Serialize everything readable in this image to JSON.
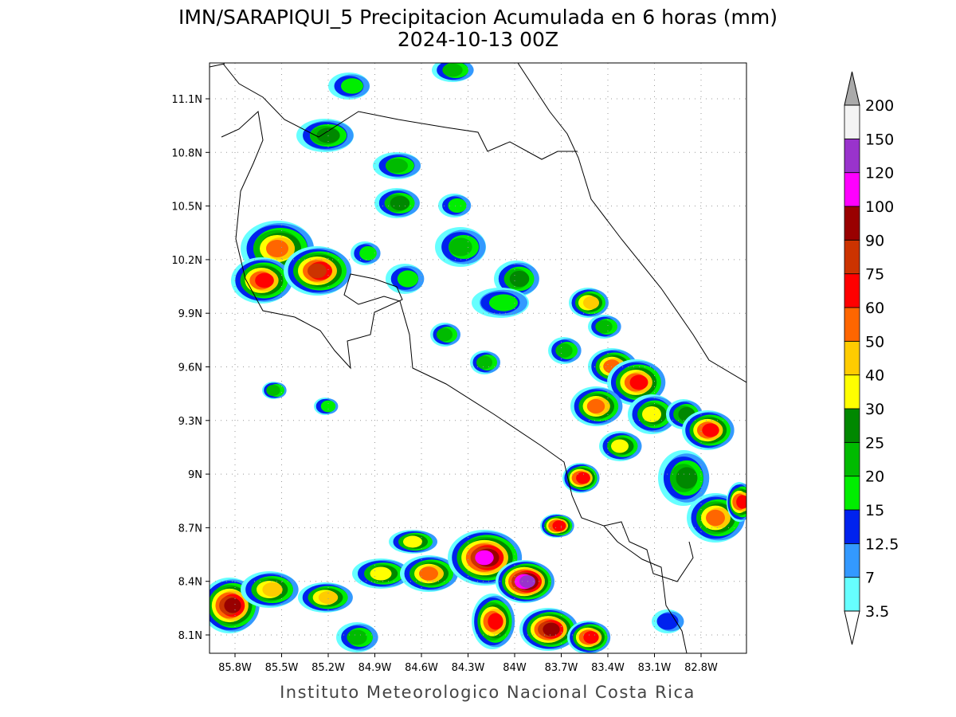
{
  "title": "IMN/SARAPIQUI_5 Precipitacion Acumulada en 6 horas (mm)",
  "subtitle": "2024-10-13 00Z",
  "map": {
    "lon_ticks": [
      "85.8W",
      "85.5W",
      "85.2W",
      "84.9W",
      "84.6W",
      "84.3W",
      "84W",
      "83.7W",
      "83.4W",
      "83.1W",
      "82.8W"
    ],
    "lat_ticks": [
      "11.1N",
      "10.8N",
      "10.5N",
      "10.2N",
      "9.9N",
      "9.6N",
      "9.3N",
      "9N",
      "8.7N",
      "8.4N",
      "8.1N"
    ]
  },
  "colorbar": {
    "levels": [
      3.5,
      7,
      12.5,
      15,
      20,
      25,
      30,
      40,
      50,
      60,
      75,
      90,
      100,
      120,
      150,
      200
    ],
    "colors": [
      "#66ffff",
      "#3399ff",
      "#0022ee",
      "#00ee00",
      "#00bb00",
      "#008800",
      "#ffff00",
      "#ffcc00",
      "#ff6600",
      "#ff0000",
      "#cc3300",
      "#990000",
      "#ff00ff",
      "#9933cc",
      "#f4f4f4"
    ],
    "under_color": "#ffffff",
    "over_color": "#aaaaaa"
  },
  "footer": "Instituto Meteorologico Nacional Costa Rica"
}
